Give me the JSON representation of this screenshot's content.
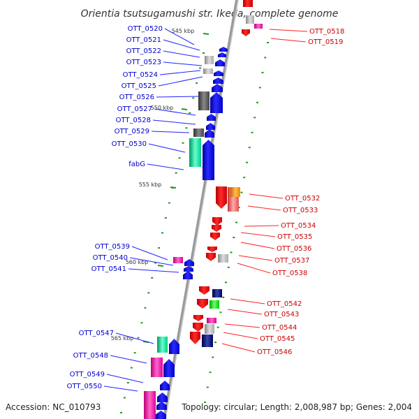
{
  "title": "Orientia tsutsugamushi str. Ikeda, complete genome",
  "footer": {
    "accession": "Accession: NC_010793",
    "summary": "Topology: circular; Length: 2,008,987 bp; Genes: 2,004"
  },
  "colors": {
    "forward_label": "#0000cc",
    "reverse_label": "#cc0000",
    "forward_gene": "#0000ff",
    "reverse_gene": "#ff0000",
    "backbone": "#9a9a9a",
    "tick_mark": "#229922"
  },
  "ticks": [
    "545 kbp",
    "550 kbp",
    "555 kbp",
    "560 kbp",
    "565 kbp"
  ],
  "left_labels": [
    "OTT_0520",
    "OTT_0521",
    "OTT_0522",
    "OTT_0523",
    "OTT_0524",
    "OTT_0525",
    "OTT_0526",
    "OTT_0527",
    "OTT_0528",
    "OTT_0529",
    "OTT_0530",
    "fabG",
    "OTT_0539",
    "OTT_0540",
    "OTT_0541",
    "OTT_0547",
    "OTT_0548",
    "OTT_0549",
    "OTT_0550"
  ],
  "right_labels": [
    "OTT_0518",
    "OTT_0519",
    "OTT_0532",
    "OTT_0533",
    "OTT_0534",
    "OTT_0535",
    "OTT_0536",
    "OTT_0537",
    "OTT_0538",
    "OTT_0542",
    "OTT_0543",
    "OTT_0544",
    "OTT_0545",
    "OTT_0546"
  ]
}
